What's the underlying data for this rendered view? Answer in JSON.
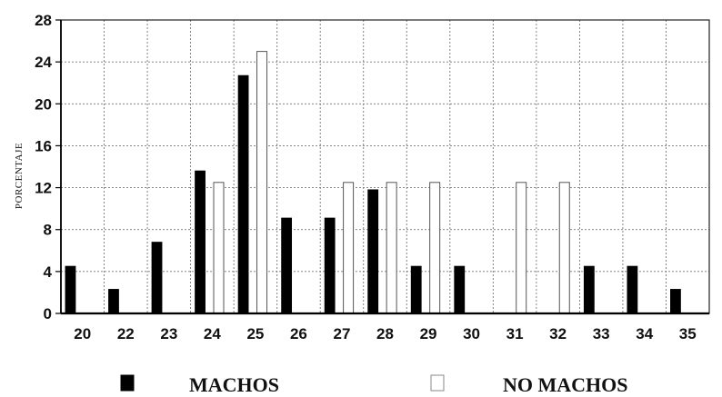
{
  "chart_data": {
    "type": "bar",
    "ylabel": "PORCENTAJE",
    "xlabel": "",
    "title": "",
    "ylim": [
      0,
      28
    ],
    "yticks": [
      0,
      4,
      8,
      12,
      16,
      20,
      24,
      28
    ],
    "grid": true,
    "legend_position": "bottom",
    "categories": [
      "20",
      "22",
      "23",
      "24",
      "25",
      "26",
      "27",
      "28",
      "29",
      "30",
      "31",
      "32",
      "33",
      "34",
      "35"
    ],
    "series": [
      {
        "name": "MACHOS",
        "fill": "#000000",
        "stroke": "#000000",
        "values": [
          4.5,
          2.3,
          6.8,
          13.6,
          22.7,
          9.1,
          9.1,
          11.8,
          4.5,
          4.5,
          0,
          0,
          4.5,
          4.5,
          2.3
        ]
      },
      {
        "name": "NO MACHOS",
        "fill": "#ffffff",
        "stroke": "#555555",
        "values": [
          0,
          0,
          0,
          12.5,
          25.0,
          0,
          12.5,
          12.5,
          12.5,
          0,
          12.5,
          12.5,
          0,
          0,
          0
        ]
      }
    ]
  }
}
